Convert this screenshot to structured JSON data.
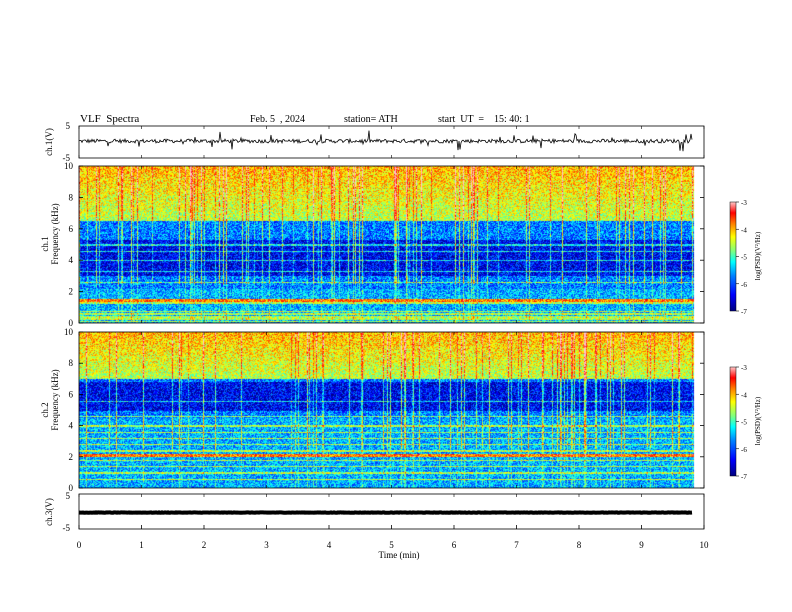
{
  "header": {
    "title": "VLF  Spectra",
    "date": "Feb. 5  , 2024",
    "station": "station= ATH",
    "start": "start  UT  =    15: 40: 1"
  },
  "chart_data": [
    {
      "id": "ch1-waveform",
      "type": "line",
      "ylabel": "ch.1(V)",
      "ylim": [
        -5,
        5
      ],
      "y_ticks": [
        "5",
        "-5"
      ],
      "xlim": [
        0,
        10
      ],
      "x_data_max": 9.82,
      "baseline_v": 0.3,
      "noise_amplitude_v": 0.6,
      "color": "#000000"
    },
    {
      "id": "ch1-spectrogram",
      "type": "heatmap",
      "ylabel": "Frequency (kHz)",
      "channel_label": "ch.1",
      "ylim": [
        0,
        10
      ],
      "y_ticks": [
        "0",
        "2",
        "4",
        "6",
        "8",
        "10"
      ],
      "xlim": [
        0,
        10
      ],
      "x_data_max": 9.82,
      "profile": {
        "low_band_khz": [
          0,
          2.2
        ],
        "quiet_band_khz": [
          3.0,
          5.3
        ],
        "active_band_khz": [
          6.5,
          10
        ],
        "strong_line_khz": [
          0.9,
          2.0
        ],
        "hum_lines_khz": [
          0.15,
          0.25,
          0.35,
          0.45,
          0.55,
          0.65,
          0.75,
          1.3,
          1.5,
          2.6,
          3.3,
          4.0,
          4.6,
          5.0
        ]
      },
      "colorbar": {
        "label": "log(PSD)(V²/Hz)",
        "ticks": [
          "-3",
          "-4",
          "-5",
          "-6",
          "-7"
        ],
        "range": [
          -7,
          -3
        ]
      }
    },
    {
      "id": "ch2-spectrogram",
      "type": "heatmap",
      "ylabel": "Frequency (kHz)",
      "channel_label": "ch.2",
      "ylim": [
        0,
        10
      ],
      "y_ticks": [
        "0",
        "2",
        "4",
        "6",
        "8",
        "10"
      ],
      "xlim": [
        0,
        10
      ],
      "x_data_max": 9.82,
      "profile": {
        "low_band_khz": [
          0,
          4.5
        ],
        "quiet_band_khz": [
          5.0,
          6.8
        ],
        "active_band_khz": [
          7.0,
          10
        ],
        "strong_line_khz": [
          2.0,
          2.2
        ],
        "hum_lines_khz": [
          0.6,
          1.0,
          1.4,
          1.8,
          2.4,
          2.8,
          3.2,
          3.6,
          4.0,
          4.6,
          5.6
        ]
      },
      "colorbar": {
        "label": "log(PSD)(V²/Hz)",
        "ticks": [
          "-3",
          "-4",
          "-5",
          "-6",
          "-7"
        ],
        "range": [
          -7,
          -3
        ]
      }
    },
    {
      "id": "ch3-waveform",
      "type": "line",
      "ylabel": "ch.3(V)",
      "ylim": [
        -5,
        5
      ],
      "y_ticks": [
        "5",
        "-5"
      ],
      "xlim": [
        0,
        10
      ],
      "x_data_max": 9.82,
      "baseline_v": -0.3,
      "noise_amplitude_v": 0.05,
      "color": "#000000"
    }
  ],
  "x_axis": {
    "label": "Time  (min)",
    "ticks": [
      "0",
      "1",
      "2",
      "3",
      "4",
      "5",
      "6",
      "7",
      "8",
      "9",
      "10"
    ]
  },
  "colormap": [
    "#00007f",
    "#0000ff",
    "#007fff",
    "#00ffff",
    "#7fff7f",
    "#ffff00",
    "#ff7f00",
    "#ff0000",
    "#ffc8c8"
  ]
}
